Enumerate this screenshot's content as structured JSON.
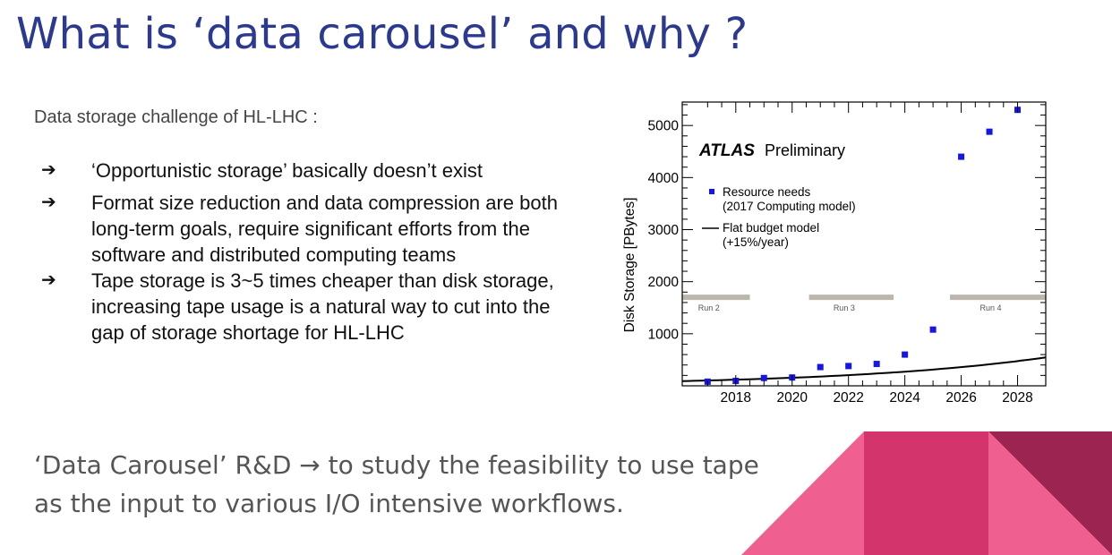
{
  "slide": {
    "title": "What is ‘data carousel’ and why ?",
    "intro": "Data storage challenge of HL-LHC :",
    "bullets": [
      {
        "marker": "➔",
        "text": "‘Opportunistic storage’ basically doesn’t exist"
      },
      {
        "marker": "➔",
        "text": "Format size reduction and data compression are both long-term goals, require significant efforts from the software and distributed computing teams"
      },
      {
        "marker": "➔",
        "text": "Tape storage is 3~5 times cheaper than disk storage, increasing tape usage is a natural way to cut into the gap of storage shortage for HL-LHC"
      }
    ],
    "bottom_line1": "‘Data Carousel’ R&D → to study the feasibility to use tape",
    "bottom_line2": "as the input to various I/O intensive workflows."
  },
  "colors": {
    "title": "#2b3990",
    "marker": "#1515e6",
    "curve": "#000000",
    "run_band": "#bdb6ae",
    "deco_light": "#ef5f8f",
    "deco_mid": "#d3346b",
    "deco_dark": "#9b2550"
  },
  "chart_data": {
    "type": "scatter",
    "experiment": "ATLAS",
    "experiment_tag": "Preliminary",
    "ylabel": "Disk Storage [PBytes]",
    "xlabel": "",
    "xlim": [
      2016.1,
      2029.0
    ],
    "ylim": [
      0,
      5450
    ],
    "x_ticks": [
      2018,
      2020,
      2022,
      2024,
      2026,
      2028
    ],
    "y_ticks": [
      1000,
      2000,
      3000,
      4000,
      5000
    ],
    "legend_position": "top-left",
    "legend": [
      {
        "label_line1": "Resource needs",
        "label_line2": "(2017 Computing model)",
        "style": "marker"
      },
      {
        "label_line1": "Flat budget model",
        "label_line2": "(+15%/year)",
        "style": "line"
      }
    ],
    "series": [
      {
        "name": "Resource needs (2017 Computing model)",
        "x": [
          2017,
          2018,
          2019,
          2020,
          2021,
          2022,
          2023,
          2024,
          2025,
          2026,
          2027,
          2028
        ],
        "y": [
          80,
          95,
          150,
          160,
          360,
          380,
          420,
          600,
          1080,
          4400,
          4880,
          5300
        ]
      },
      {
        "name": "Flat budget model (+15%/year)",
        "type": "line",
        "base_x": 2016.1,
        "base_y": 90,
        "growth_per_year": 0.15
      }
    ],
    "runs": [
      {
        "label": "Run 2",
        "x_start": 2016.1,
        "x_end": 2018.5
      },
      {
        "label": "Run 3",
        "x_start": 2020.6,
        "x_end": 2023.6
      },
      {
        "label": "Run 4",
        "x_start": 2025.6,
        "x_end": 2029.0
      }
    ],
    "runs_y": 1700
  }
}
